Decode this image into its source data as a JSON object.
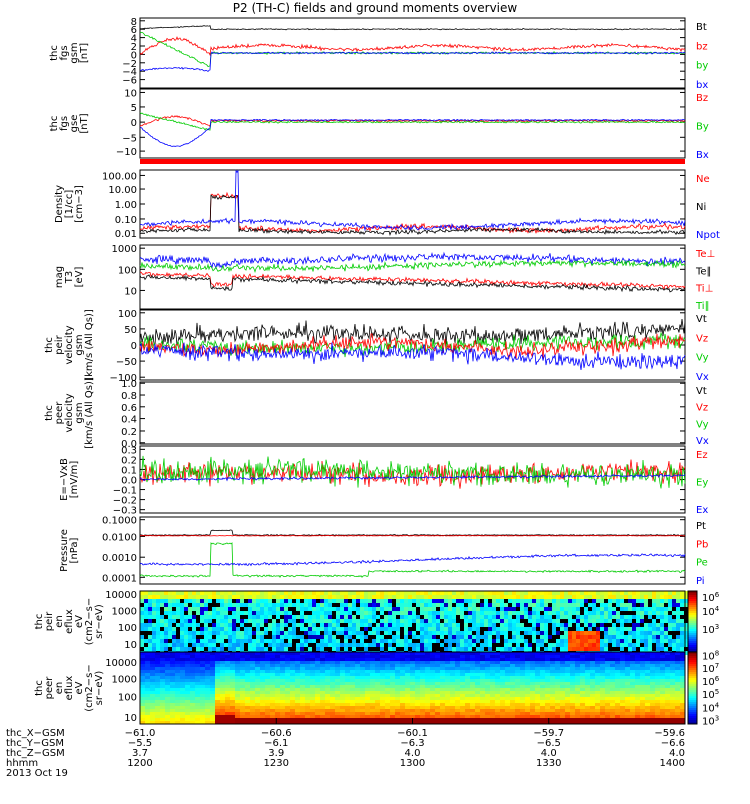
{
  "title": "P2 (TH-C) fields and ground moments overview",
  "colors": {
    "black": "#000000",
    "red": "#ff0000",
    "green": "#00cc00",
    "blue": "#0000ff"
  },
  "colorbars": [
    {
      "name": "spec1",
      "ticks": [
        "10^6",
        "10^4",
        "10^3"
      ],
      "tickPos": [
        0.1,
        0.33,
        0.62
      ],
      "label": ""
    },
    {
      "name": "spec2",
      "ticks": [
        "10^8",
        "10^7",
        "10^6",
        "10^5",
        "10^4",
        "10^3"
      ],
      "tickPos": [
        0.05,
        0.22,
        0.4,
        0.58,
        0.77,
        0.95
      ],
      "label": ""
    }
  ],
  "panels": [
    {
      "id": "fgs-gsm",
      "ylabel": [
        "thc",
        "fgs",
        "gsm",
        "[nT]"
      ],
      "yticks": [
        "8",
        "6",
        "4",
        "2",
        "0",
        "−2",
        "−4",
        "−6"
      ],
      "ytickPos": [
        0.04,
        0.16,
        0.28,
        0.4,
        0.52,
        0.64,
        0.76,
        0.88
      ],
      "legend": [
        {
          "t": "Bt",
          "c": "black"
        },
        {
          "t": "bz",
          "c": "red"
        },
        {
          "t": "by",
          "c": "green"
        },
        {
          "t": "bx",
          "c": "blue"
        }
      ]
    },
    {
      "id": "fgs-gse",
      "ylabel": [
        "thc",
        "fgs",
        "gse",
        "[nT]"
      ],
      "yticks": [
        "10",
        "5",
        "0",
        "−5",
        "−10"
      ],
      "ytickPos": [
        0.05,
        0.26,
        0.48,
        0.7,
        0.9
      ],
      "legend": [
        {
          "t": "Bz",
          "c": "red"
        },
        {
          "t": "By",
          "c": "green"
        },
        {
          "t": "Bx",
          "c": "blue"
        }
      ]
    },
    {
      "id": "density",
      "ylabel": [
        "Density",
        "[1/cc]",
        "[cm−3]"
      ],
      "yticks": [
        "100.00",
        "10.00",
        "1.00",
        "0.10",
        "0.01"
      ],
      "ytickPos": [
        0.08,
        0.28,
        0.5,
        0.72,
        0.93
      ],
      "legend": [
        {
          "t": "Ne",
          "c": "red"
        },
        {
          "t": "Ni",
          "c": "black"
        },
        {
          "t": "Npot",
          "c": "blue"
        }
      ]
    },
    {
      "id": "temperature",
      "ylabel": [
        "mag",
        "T3",
        "[eV]"
      ],
      "yticks": [
        "1000",
        "100",
        "10"
      ],
      "ytickPos": [
        0.05,
        0.38,
        0.71
      ],
      "legend": [
        {
          "t": "Te⊥",
          "c": "red"
        },
        {
          "t": "Te∥",
          "c": "black"
        },
        {
          "t": "Ti⊥",
          "c": "red"
        },
        {
          "t": "Ti∥",
          "c": "green"
        }
      ]
    },
    {
      "id": "peir-velocity",
      "ylabel": [
        "thc",
        "peir",
        "velocity",
        "gsm",
        "[km/s (All Qs)]"
      ],
      "yticks": [
        "100",
        "50",
        "0",
        "−50",
        "−100"
      ],
      "ytickPos": [
        0.04,
        0.27,
        0.5,
        0.73,
        0.96
      ],
      "legend": [
        {
          "t": "Vt",
          "c": "black"
        },
        {
          "t": "Vz",
          "c": "red"
        },
        {
          "t": "Vy",
          "c": "green"
        },
        {
          "t": "Vx",
          "c": "blue"
        }
      ]
    },
    {
      "id": "peer-velocity",
      "ylabel": [
        "thc",
        "peer",
        "velocity",
        "gsm",
        "[km/s (All Qs)]"
      ],
      "yticks": [
        "1.0",
        "0.8",
        "0.6",
        "0.4",
        "0.2",
        "0.0"
      ],
      "ytickPos": [
        0.02,
        0.21,
        0.4,
        0.59,
        0.79,
        0.98
      ],
      "legend": [
        {
          "t": "Vt",
          "c": "black"
        },
        {
          "t": "Vz",
          "c": "red"
        },
        {
          "t": "Vy",
          "c": "green"
        },
        {
          "t": "Vx",
          "c": "blue"
        }
      ]
    },
    {
      "id": "efield",
      "ylabel": [
        "E=−VxB",
        "[mV/m]"
      ],
      "yticks": [
        "0.3",
        "0.2",
        "0.1",
        "0.0",
        "−0.1",
        "−0.2",
        "−0.3"
      ],
      "ytickPos": [
        0.05,
        0.2,
        0.35,
        0.5,
        0.65,
        0.8,
        0.95
      ],
      "legend": [
        {
          "t": "Ez",
          "c": "red"
        },
        {
          "t": "Ey",
          "c": "green"
        },
        {
          "t": "Ex",
          "c": "blue"
        }
      ]
    },
    {
      "id": "pressure",
      "ylabel": [
        "Pressure",
        "[nPa]"
      ],
      "yticks": [
        "0.1000",
        "0.0100",
        "0.0010",
        "0.0001"
      ],
      "ytickPos": [
        0.04,
        0.29,
        0.6,
        0.9
      ],
      "legend": [
        {
          "t": "Pt",
          "c": "black"
        },
        {
          "t": "Pb",
          "c": "red"
        },
        {
          "t": "Pe",
          "c": "green"
        },
        {
          "t": "Pi",
          "c": "blue"
        }
      ]
    },
    {
      "id": "peir-spec",
      "ylabel": [
        "thc",
        "peir",
        "en",
        "eflux",
        "eV",
        "(cm2−s−",
        "sr−eV)"
      ],
      "yticks": [
        "10000",
        "1000",
        "100",
        "10"
      ],
      "ytickPos": [
        0.05,
        0.32,
        0.59,
        0.87
      ],
      "legend": []
    },
    {
      "id": "peer-spec",
      "ylabel": [
        "thc",
        "peer",
        "en",
        "eflux",
        "eV",
        "(cm2−s−",
        "sr−eV)"
      ],
      "yticks": [
        "10000",
        "1000",
        "100",
        "10"
      ],
      "ytickPos": [
        0.14,
        0.37,
        0.62,
        0.9
      ],
      "legend": []
    }
  ],
  "xaxis": {
    "rows": [
      {
        "label": "thc_X−GSM",
        "values": [
          "−61.0",
          "−60.6",
          "−60.1",
          "−59.7",
          "−59.6"
        ]
      },
      {
        "label": "thc_Y−GSM",
        "values": [
          "−5.5",
          "−6.1",
          "−6.3",
          "−6.5",
          "−6.6"
        ]
      },
      {
        "label": "thc_Z−GSM",
        "values": [
          "3.7",
          "3.9",
          "4.0",
          "4.0",
          "4.0"
        ]
      },
      {
        "label": "hhmm",
        "values": [
          "1200",
          "1230",
          "1300",
          "1330",
          "1400"
        ]
      }
    ],
    "date": "2013 Oct 19"
  },
  "chart_data": {
    "type": "line",
    "title": "P2 (TH-C) fields and ground moments overview",
    "x": [
      "1200",
      "1230",
      "1300",
      "1330",
      "1400"
    ],
    "xlabel": "hhmm",
    "date": "2013 Oct 19",
    "panels": [
      {
        "ylabel": "thc fgs gsm [nT]",
        "ylim": [
          -7,
          9
        ],
        "series": [
          {
            "name": "Bt",
            "values": [
              4.8,
              5.7,
              5.5,
              5.6,
              5.8
            ]
          },
          {
            "name": "bz",
            "values": [
              1.2,
              1.0,
              0.9,
              0.7,
              0.5
            ]
          },
          {
            "name": "by",
            "values": [
              5.5,
              0.8,
              0.6,
              0.5,
              0.4
            ]
          },
          {
            "name": "bx",
            "values": [
              -3.0,
              0.2,
              0.1,
              0.1,
              0.2
            ]
          }
        ]
      },
      {
        "ylabel": "thc fgs gse [nT]",
        "ylim": [
          -12,
          11
        ],
        "series": [
          {
            "name": "Bz",
            "values": [
              -1.0,
              0.5,
              0.4,
              0.4,
              0.3
            ]
          },
          {
            "name": "By",
            "values": [
              3.0,
              0.3,
              0.4,
              0.3,
              0.4
            ]
          },
          {
            "name": "Bx",
            "values": [
              -3.0,
              0.9,
              0.8,
              0.9,
              1.0
            ]
          }
        ]
      },
      {
        "ylabel": "Density [1/cc]",
        "scale": "log",
        "ylim": [
          0.01,
          200
        ],
        "series": [
          {
            "name": "Ne",
            "values": [
              0.02,
              0.05,
              0.04,
              0.05,
              0.06
            ]
          },
          {
            "name": "Ni",
            "values": [
              0.02,
              0.03,
              0.03,
              0.04,
              0.04
            ]
          },
          {
            "name": "Npot",
            "values": [
              0.03,
              0.08,
              0.07,
              0.07,
              0.08
            ]
          }
        ]
      },
      {
        "ylabel": "magT3 [eV]",
        "scale": "log",
        "ylim": [
          5,
          1000
        ],
        "series": [
          {
            "name": "Te⊥",
            "values": [
              80,
              60,
              50,
              30,
              25
            ]
          },
          {
            "name": "Te∥",
            "values": [
              90,
              70,
              55,
              35,
              28
            ]
          },
          {
            "name": "Ti⊥",
            "values": [
              200,
              150,
              140,
              120,
              110
            ]
          },
          {
            "name": "Ti∥",
            "values": [
              250,
              180,
              160,
              140,
              130
            ]
          }
        ]
      },
      {
        "ylabel": "thc peir velocity gsm [km/s (All Qs)]",
        "ylim": [
          -100,
          110
        ],
        "series": [
          {
            "name": "Vt",
            "values": [
              15,
              30,
              40,
              55,
              50
            ]
          },
          {
            "name": "Vz",
            "values": [
              -5,
              -5,
              -10,
              -20,
              -15
            ]
          },
          {
            "name": "Vy",
            "values": [
              -5,
              0,
              5,
              10,
              10
            ]
          },
          {
            "name": "Vx",
            "values": [
              0,
              -10,
              -25,
              -40,
              -35
            ]
          }
        ]
      },
      {
        "ylabel": "thc peer velocity gsm [km/s (All Qs)]",
        "ylim": [
          0,
          1
        ],
        "series": [
          {
            "name": "Vt",
            "values": []
          },
          {
            "name": "Vz",
            "values": []
          },
          {
            "name": "Vy",
            "values": []
          },
          {
            "name": "Vx",
            "values": []
          }
        ]
      },
      {
        "ylabel": "E=−VxB [mV/m]",
        "ylim": [
          -0.3,
          0.3
        ],
        "series": [
          {
            "name": "Ez",
            "values": [
              0.05,
              0.05,
              0.07,
              0.06,
              0.05
            ]
          },
          {
            "name": "Ey",
            "values": [
              0.05,
              0.08,
              0.08,
              0.07,
              0.06
            ]
          },
          {
            "name": "Ex",
            "values": [
              0.0,
              0.0,
              0.0,
              0.01,
              0.02
            ]
          }
        ]
      },
      {
        "ylabel": "Pressure [nPa]",
        "scale": "log",
        "ylim": [
          0.0001,
          0.1
        ],
        "series": [
          {
            "name": "Pt",
            "values": [
              0.011,
              0.012,
              0.012,
              0.013,
              0.014
            ]
          },
          {
            "name": "Pb",
            "values": [
              0.01,
              0.011,
              0.011,
              0.012,
              0.013
            ]
          },
          {
            "name": "Pe",
            "values": [
              0.0002,
              0.0003,
              0.0004,
              0.0004,
              0.0003
            ]
          },
          {
            "name": "Pi",
            "values": [
              0.0008,
              0.0011,
              0.0012,
              0.0014,
              0.0013
            ]
          }
        ]
      }
    ]
  }
}
